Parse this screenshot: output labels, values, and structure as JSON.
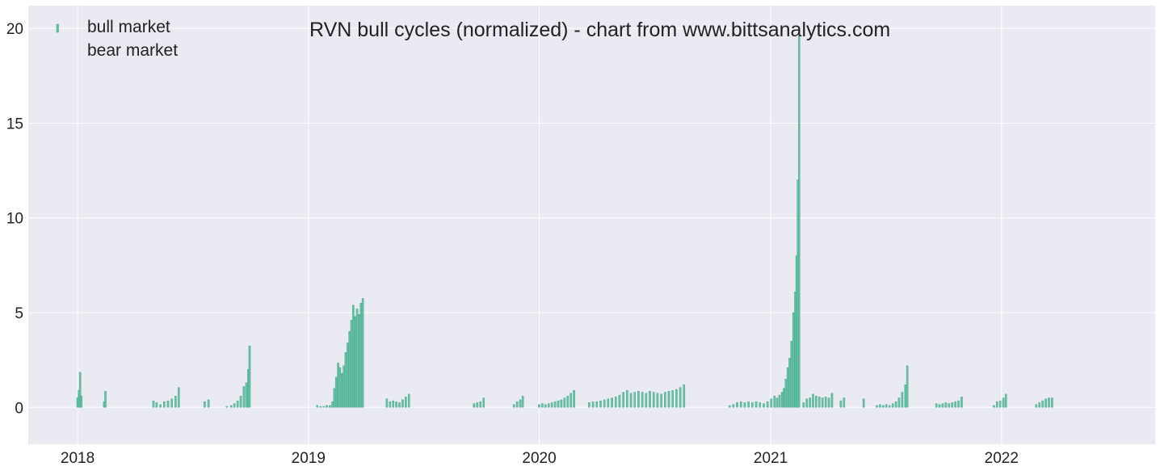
{
  "chart_data": {
    "type": "bar",
    "title": "RVN bull cycles (normalized)  - chart from www.bittsanalytics.com",
    "xlabel": "",
    "ylabel": "",
    "x_axis_kind": "date",
    "xlim": [
      "2017-10-15",
      "2022-09-01"
    ],
    "ylim": [
      -1.95,
      21.2
    ],
    "x_ticks": [
      {
        "label": "2018",
        "value": "2018-01-01"
      },
      {
        "label": "2019",
        "value": "2019-01-01"
      },
      {
        "label": "2020",
        "value": "2020-01-01"
      },
      {
        "label": "2021",
        "value": "2021-01-01"
      },
      {
        "label": "2022",
        "value": "2022-01-01"
      }
    ],
    "y_ticks": [
      0,
      5,
      10,
      15,
      20
    ],
    "grid": true,
    "legend_position": "top-left",
    "colors": {
      "bull": "#66c2a5",
      "bull_edge": "#3d9c80",
      "background": "#eaeaf2",
      "grid": "#ffffff"
    },
    "legend": [
      {
        "label": "bull market",
        "color": "#66c2a5",
        "marker": "bar"
      },
      {
        "label": "bear market",
        "color": "#eaeaf2",
        "marker": "none"
      }
    ],
    "series": [
      {
        "name": "bull market",
        "bars": [
          {
            "date": "2018-01-01",
            "value": 0.5
          },
          {
            "date": "2018-01-03",
            "value": 0.9
          },
          {
            "date": "2018-01-05",
            "value": 1.85
          },
          {
            "date": "2018-01-07",
            "value": 0.6
          },
          {
            "date": "2018-02-12",
            "value": 0.3
          },
          {
            "date": "2018-02-14",
            "value": 0.85
          },
          {
            "date": "2018-05-01",
            "value": 0.35
          },
          {
            "date": "2018-05-06",
            "value": 0.25
          },
          {
            "date": "2018-05-12",
            "value": 0.15
          },
          {
            "date": "2018-05-18",
            "value": 0.3
          },
          {
            "date": "2018-05-24",
            "value": 0.35
          },
          {
            "date": "2018-05-30",
            "value": 0.45
          },
          {
            "date": "2018-06-05",
            "value": 0.6
          },
          {
            "date": "2018-06-10",
            "value": 1.05
          },
          {
            "date": "2018-07-21",
            "value": 0.3
          },
          {
            "date": "2018-07-27",
            "value": 0.4
          },
          {
            "date": "2018-08-25",
            "value": 0.05
          },
          {
            "date": "2018-09-01",
            "value": 0.1
          },
          {
            "date": "2018-09-06",
            "value": 0.2
          },
          {
            "date": "2018-09-11",
            "value": 0.35
          },
          {
            "date": "2018-09-16",
            "value": 0.6
          },
          {
            "date": "2018-09-21",
            "value": 1.1
          },
          {
            "date": "2018-09-25",
            "value": 1.3
          },
          {
            "date": "2018-09-28",
            "value": 2.0
          },
          {
            "date": "2018-09-30",
            "value": 3.25
          },
          {
            "date": "2019-01-15",
            "value": 0.1
          },
          {
            "date": "2019-01-20",
            "value": 0.05
          },
          {
            "date": "2019-01-25",
            "value": 0.05
          },
          {
            "date": "2019-01-30",
            "value": 0.1
          },
          {
            "date": "2019-02-04",
            "value": 0.1
          },
          {
            "date": "2019-02-08",
            "value": 0.3
          },
          {
            "date": "2019-02-11",
            "value": 1.0
          },
          {
            "date": "2019-02-14",
            "value": 1.6
          },
          {
            "date": "2019-02-17",
            "value": 2.35
          },
          {
            "date": "2019-02-20",
            "value": 2.1
          },
          {
            "date": "2019-02-23",
            "value": 1.8
          },
          {
            "date": "2019-02-26",
            "value": 2.2
          },
          {
            "date": "2019-03-01",
            "value": 2.9
          },
          {
            "date": "2019-03-04",
            "value": 3.4
          },
          {
            "date": "2019-03-07",
            "value": 4.0
          },
          {
            "date": "2019-03-10",
            "value": 4.6
          },
          {
            "date": "2019-03-13",
            "value": 5.4
          },
          {
            "date": "2019-03-16",
            "value": 4.8
          },
          {
            "date": "2019-03-19",
            "value": 5.2
          },
          {
            "date": "2019-03-22",
            "value": 4.9
          },
          {
            "date": "2019-03-25",
            "value": 5.5
          },
          {
            "date": "2019-03-28",
            "value": 5.75
          },
          {
            "date": "2019-05-05",
            "value": 0.45
          },
          {
            "date": "2019-05-10",
            "value": 0.3
          },
          {
            "date": "2019-05-15",
            "value": 0.35
          },
          {
            "date": "2019-05-20",
            "value": 0.3
          },
          {
            "date": "2019-05-25",
            "value": 0.25
          },
          {
            "date": "2019-05-30",
            "value": 0.4
          },
          {
            "date": "2019-06-04",
            "value": 0.55
          },
          {
            "date": "2019-06-09",
            "value": 0.7
          },
          {
            "date": "2019-09-20",
            "value": 0.2
          },
          {
            "date": "2019-09-25",
            "value": 0.25
          },
          {
            "date": "2019-09-30",
            "value": 0.3
          },
          {
            "date": "2019-10-05",
            "value": 0.5
          },
          {
            "date": "2019-11-22",
            "value": 0.15
          },
          {
            "date": "2019-11-27",
            "value": 0.3
          },
          {
            "date": "2019-12-02",
            "value": 0.4
          },
          {
            "date": "2019-12-06",
            "value": 0.6
          },
          {
            "date": "2020-01-01",
            "value": 0.15
          },
          {
            "date": "2020-01-06",
            "value": 0.2
          },
          {
            "date": "2020-01-11",
            "value": 0.15
          },
          {
            "date": "2020-01-16",
            "value": 0.2
          },
          {
            "date": "2020-01-21",
            "value": 0.25
          },
          {
            "date": "2020-01-26",
            "value": 0.3
          },
          {
            "date": "2020-01-31",
            "value": 0.35
          },
          {
            "date": "2020-02-05",
            "value": 0.4
          },
          {
            "date": "2020-02-10",
            "value": 0.5
          },
          {
            "date": "2020-02-15",
            "value": 0.6
          },
          {
            "date": "2020-02-20",
            "value": 0.75
          },
          {
            "date": "2020-02-25",
            "value": 0.9
          },
          {
            "date": "2020-03-20",
            "value": 0.25
          },
          {
            "date": "2020-03-26",
            "value": 0.3
          },
          {
            "date": "2020-04-01",
            "value": 0.3
          },
          {
            "date": "2020-04-07",
            "value": 0.35
          },
          {
            "date": "2020-04-13",
            "value": 0.4
          },
          {
            "date": "2020-04-19",
            "value": 0.45
          },
          {
            "date": "2020-04-25",
            "value": 0.5
          },
          {
            "date": "2020-05-01",
            "value": 0.55
          },
          {
            "date": "2020-05-07",
            "value": 0.65
          },
          {
            "date": "2020-05-13",
            "value": 0.8
          },
          {
            "date": "2020-05-19",
            "value": 0.9
          },
          {
            "date": "2020-05-25",
            "value": 0.75
          },
          {
            "date": "2020-05-31",
            "value": 0.8
          },
          {
            "date": "2020-06-06",
            "value": 0.85
          },
          {
            "date": "2020-06-12",
            "value": 0.8
          },
          {
            "date": "2020-06-18",
            "value": 0.75
          },
          {
            "date": "2020-06-24",
            "value": 0.85
          },
          {
            "date": "2020-06-30",
            "value": 0.8
          },
          {
            "date": "2020-07-06",
            "value": 0.75
          },
          {
            "date": "2020-07-12",
            "value": 0.7
          },
          {
            "date": "2020-07-18",
            "value": 0.8
          },
          {
            "date": "2020-07-24",
            "value": 0.85
          },
          {
            "date": "2020-07-30",
            "value": 0.9
          },
          {
            "date": "2020-08-05",
            "value": 0.95
          },
          {
            "date": "2020-08-11",
            "value": 1.05
          },
          {
            "date": "2020-08-17",
            "value": 1.2
          },
          {
            "date": "2020-10-28",
            "value": 0.1
          },
          {
            "date": "2020-11-03",
            "value": 0.15
          },
          {
            "date": "2020-11-09",
            "value": 0.25
          },
          {
            "date": "2020-11-15",
            "value": 0.3
          },
          {
            "date": "2020-11-21",
            "value": 0.25
          },
          {
            "date": "2020-11-27",
            "value": 0.3
          },
          {
            "date": "2020-12-03",
            "value": 0.25
          },
          {
            "date": "2020-12-09",
            "value": 0.3
          },
          {
            "date": "2020-12-15",
            "value": 0.25
          },
          {
            "date": "2020-12-21",
            "value": 0.2
          },
          {
            "date": "2020-12-27",
            "value": 0.3
          },
          {
            "date": "2021-01-02",
            "value": 0.45
          },
          {
            "date": "2021-01-07",
            "value": 0.6
          },
          {
            "date": "2021-01-11",
            "value": 0.5
          },
          {
            "date": "2021-01-15",
            "value": 0.65
          },
          {
            "date": "2021-01-19",
            "value": 0.8
          },
          {
            "date": "2021-01-22",
            "value": 1.0
          },
          {
            "date": "2021-01-25",
            "value": 1.5
          },
          {
            "date": "2021-01-28",
            "value": 2.1
          },
          {
            "date": "2021-01-31",
            "value": 2.6
          },
          {
            "date": "2021-02-03",
            "value": 3.5
          },
          {
            "date": "2021-02-06",
            "value": 5.0
          },
          {
            "date": "2021-02-09",
            "value": 6.1
          },
          {
            "date": "2021-02-11",
            "value": 8.0
          },
          {
            "date": "2021-02-13",
            "value": 12.0
          },
          {
            "date": "2021-02-15",
            "value": 19.6
          },
          {
            "date": "2021-02-22",
            "value": 0.25
          },
          {
            "date": "2021-02-27",
            "value": 0.45
          },
          {
            "date": "2021-03-04",
            "value": 0.5
          },
          {
            "date": "2021-03-09",
            "value": 0.7
          },
          {
            "date": "2021-03-14",
            "value": 0.6
          },
          {
            "date": "2021-03-19",
            "value": 0.55
          },
          {
            "date": "2021-03-24",
            "value": 0.5
          },
          {
            "date": "2021-03-29",
            "value": 0.55
          },
          {
            "date": "2021-04-03",
            "value": 0.5
          },
          {
            "date": "2021-04-08",
            "value": 0.75
          },
          {
            "date": "2021-04-22",
            "value": 0.35
          },
          {
            "date": "2021-04-27",
            "value": 0.5
          },
          {
            "date": "2021-05-28",
            "value": 0.45
          },
          {
            "date": "2021-06-18",
            "value": 0.1
          },
          {
            "date": "2021-06-23",
            "value": 0.15
          },
          {
            "date": "2021-06-28",
            "value": 0.1
          },
          {
            "date": "2021-07-03",
            "value": 0.15
          },
          {
            "date": "2021-07-08",
            "value": 0.1
          },
          {
            "date": "2021-07-13",
            "value": 0.2
          },
          {
            "date": "2021-07-18",
            "value": 0.3
          },
          {
            "date": "2021-07-23",
            "value": 0.5
          },
          {
            "date": "2021-07-28",
            "value": 0.8
          },
          {
            "date": "2021-08-02",
            "value": 1.2
          },
          {
            "date": "2021-08-05",
            "value": 2.2
          },
          {
            "date": "2021-09-20",
            "value": 0.2
          },
          {
            "date": "2021-09-25",
            "value": 0.15
          },
          {
            "date": "2021-09-30",
            "value": 0.2
          },
          {
            "date": "2021-10-05",
            "value": 0.25
          },
          {
            "date": "2021-10-10",
            "value": 0.2
          },
          {
            "date": "2021-10-15",
            "value": 0.25
          },
          {
            "date": "2021-10-20",
            "value": 0.3
          },
          {
            "date": "2021-10-25",
            "value": 0.35
          },
          {
            "date": "2021-10-30",
            "value": 0.55
          },
          {
            "date": "2021-12-20",
            "value": 0.1
          },
          {
            "date": "2021-12-25",
            "value": 0.3
          },
          {
            "date": "2021-12-30",
            "value": 0.35
          },
          {
            "date": "2022-01-04",
            "value": 0.5
          },
          {
            "date": "2022-01-08",
            "value": 0.7
          },
          {
            "date": "2022-02-25",
            "value": 0.15
          },
          {
            "date": "2022-03-02",
            "value": 0.25
          },
          {
            "date": "2022-03-07",
            "value": 0.35
          },
          {
            "date": "2022-03-12",
            "value": 0.45
          },
          {
            "date": "2022-03-17",
            "value": 0.5
          },
          {
            "date": "2022-03-22",
            "value": 0.5
          }
        ]
      }
    ]
  }
}
